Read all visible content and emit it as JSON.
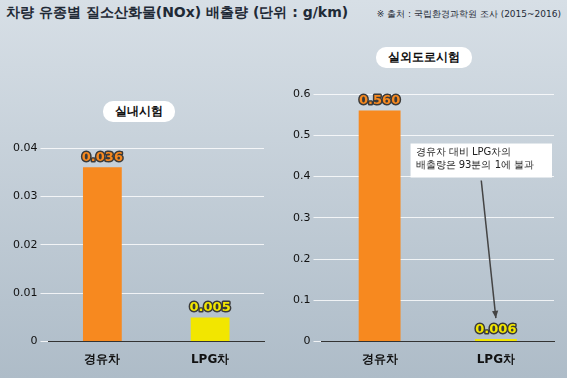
{
  "header": {
    "title": "차량 유종별 질소산화물(NOx) 배출량 (단위 : g/km)",
    "source": "※ 출처 : 국립환경과학원 조사 (2015~2016)"
  },
  "chart_data": [
    {
      "type": "bar",
      "title": "실내시험",
      "categories": [
        "경유차",
        "LPG차"
      ],
      "values": [
        0.036,
        0.005
      ],
      "colors": [
        "#f7891f",
        "#f2e600"
      ],
      "ylim": [
        0,
        0.04
      ],
      "yticks": [
        0,
        0.01,
        0.02,
        0.03,
        0.04
      ],
      "grid": true,
      "data_labels": true
    },
    {
      "type": "bar",
      "title": "실외도로시험",
      "categories": [
        "경유차",
        "LPG차"
      ],
      "values": [
        0.56,
        0.006
      ],
      "value_labels": [
        "0.560",
        "0.006"
      ],
      "colors": [
        "#f7891f",
        "#f2e600"
      ],
      "ylim": [
        0,
        0.6
      ],
      "yticks": [
        0,
        0.1,
        0.2,
        0.3,
        0.4,
        0.5,
        0.6
      ],
      "grid": true,
      "data_labels": true,
      "annotations": [
        "경유차 대비 LPG차의 배출량은 93분의 1에 불과"
      ]
    }
  ]
}
